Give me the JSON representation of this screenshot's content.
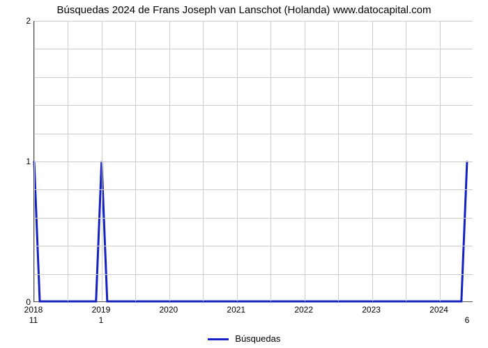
{
  "chart": {
    "type": "line",
    "title": "Búsquedas 2024 de Frans Joseph van Lanschot (Holanda) www.datocapital.com",
    "title_fontsize": 15,
    "background_color": "#ffffff",
    "grid_color": "#cccccc",
    "axis_color": "#4d4d4d",
    "line_color": "#1420c4",
    "line_width": 3,
    "x": {
      "min": 2018,
      "max": 2024.5,
      "ticks": [
        2018,
        2019,
        2020,
        2021,
        2022,
        2023,
        2024
      ],
      "minor_per_major": 2
    },
    "y": {
      "min": 0,
      "max": 2,
      "ticks": [
        0,
        1,
        2
      ],
      "minor_per_major": 5
    },
    "series": {
      "name": "Búsquedas",
      "points": [
        [
          2018.0,
          1
        ],
        [
          2018.083,
          0
        ],
        [
          2018.167,
          0
        ],
        [
          2018.917,
          0
        ],
        [
          2019.0,
          1
        ],
        [
          2019.083,
          0
        ],
        [
          2024.333,
          0
        ],
        [
          2024.417,
          1
        ]
      ]
    },
    "data_labels": [
      {
        "x": 2018.0,
        "text": "11"
      },
      {
        "x": 2019.0,
        "text": "1"
      },
      {
        "x": 2024.417,
        "text": "6"
      }
    ],
    "legend": {
      "label": "Búsquedas"
    }
  }
}
